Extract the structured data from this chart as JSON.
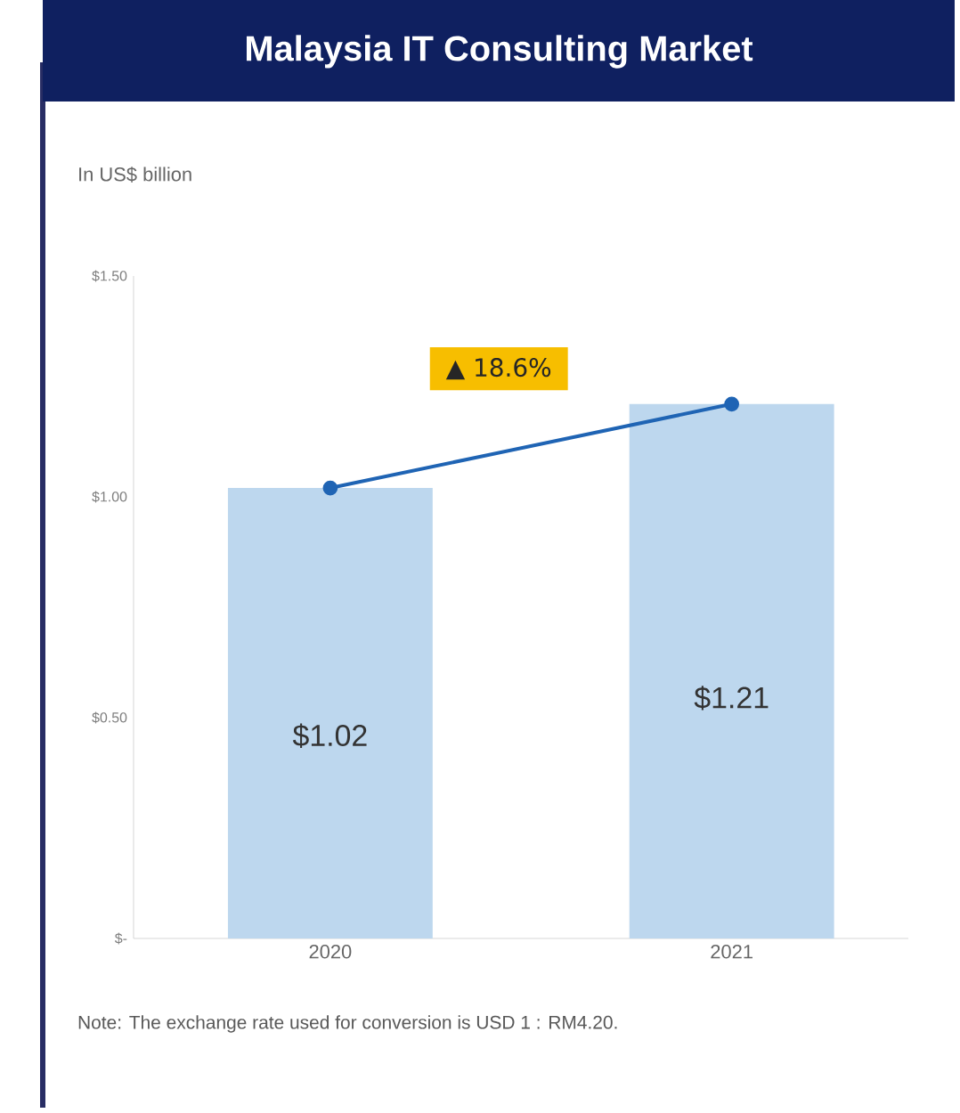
{
  "chart_data": {
    "type": "bar",
    "title": "Malaysia IT Consulting Market",
    "ylabel": "In US$ billion",
    "categories": [
      "2020",
      "2021"
    ],
    "series": [
      {
        "color": "#bdd7ee",
        "values": [
          1.02,
          1.21
        ],
        "value_labels": [
          "$1.02",
          "$1.21"
        ]
      },
      {
        "type": "line",
        "color": "#1f64b4",
        "values": [
          1.02,
          1.21
        ],
        "marker": "circle"
      }
    ],
    "ylim": [
      0,
      1.5
    ],
    "yticks": [
      {
        "value": 0,
        "label": "$-"
      },
      {
        "value": 0.5,
        "label": "$0.50"
      },
      {
        "value": 1.0,
        "label": "$1.00"
      },
      {
        "value": 1.5,
        "label": "$1.50"
      }
    ],
    "annotations": [
      "▲ 18.6%",
      "Note: The exchange rate used for conversion is USD 1 : RM4.20."
    ],
    "grid": false
  }
}
